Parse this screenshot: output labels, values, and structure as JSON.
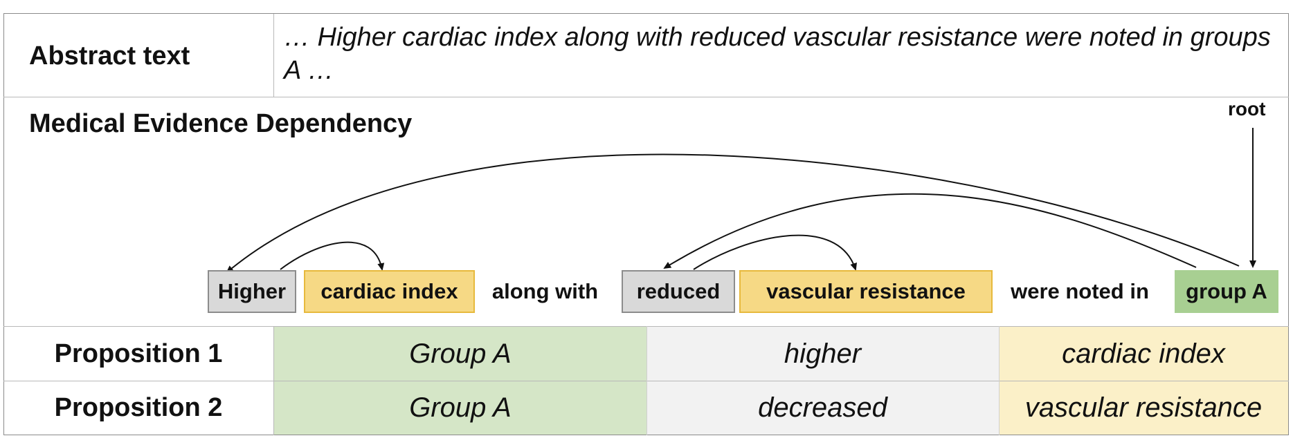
{
  "abstract_row": {
    "label": "Abstract text",
    "text": "… Higher cardiac index along with reduced vascular resistance were noted in groups A …"
  },
  "dependency": {
    "title": "Medical Evidence Dependency",
    "root_label": "root",
    "tokens": [
      {
        "text": "Higher",
        "style": "gray"
      },
      {
        "text": "cardiac index",
        "style": "yellow"
      },
      {
        "text": "along with",
        "style": "plain"
      },
      {
        "text": "reduced",
        "style": "gray"
      },
      {
        "text": "vascular resistance",
        "style": "yellow"
      },
      {
        "text": "were noted in",
        "style": "plain"
      },
      {
        "text": "group A",
        "style": "green"
      }
    ],
    "arcs": [
      {
        "from": "group A",
        "to": "Higher"
      },
      {
        "from": "group A",
        "to": "reduced"
      },
      {
        "from": "Higher",
        "to": "cardiac index"
      },
      {
        "from": "reduced",
        "to": "vascular resistance"
      },
      {
        "from": "root",
        "to": "group A"
      }
    ]
  },
  "propositions": [
    {
      "label": "Proposition 1",
      "group": "Group A",
      "direction": "higher",
      "measure": "cardiac index"
    },
    {
      "label": "Proposition 2",
      "group": "Group A",
      "direction": "decreased",
      "measure": "vascular resistance"
    }
  ],
  "colors": {
    "gray_token": "#d9d9d9",
    "yellow_token": "#f6d985",
    "green_token": "#a8cf92",
    "green_cell": "#d5e6c7",
    "gray_cell": "#f2f2f2",
    "yellow_cell": "#fbf0c8"
  }
}
